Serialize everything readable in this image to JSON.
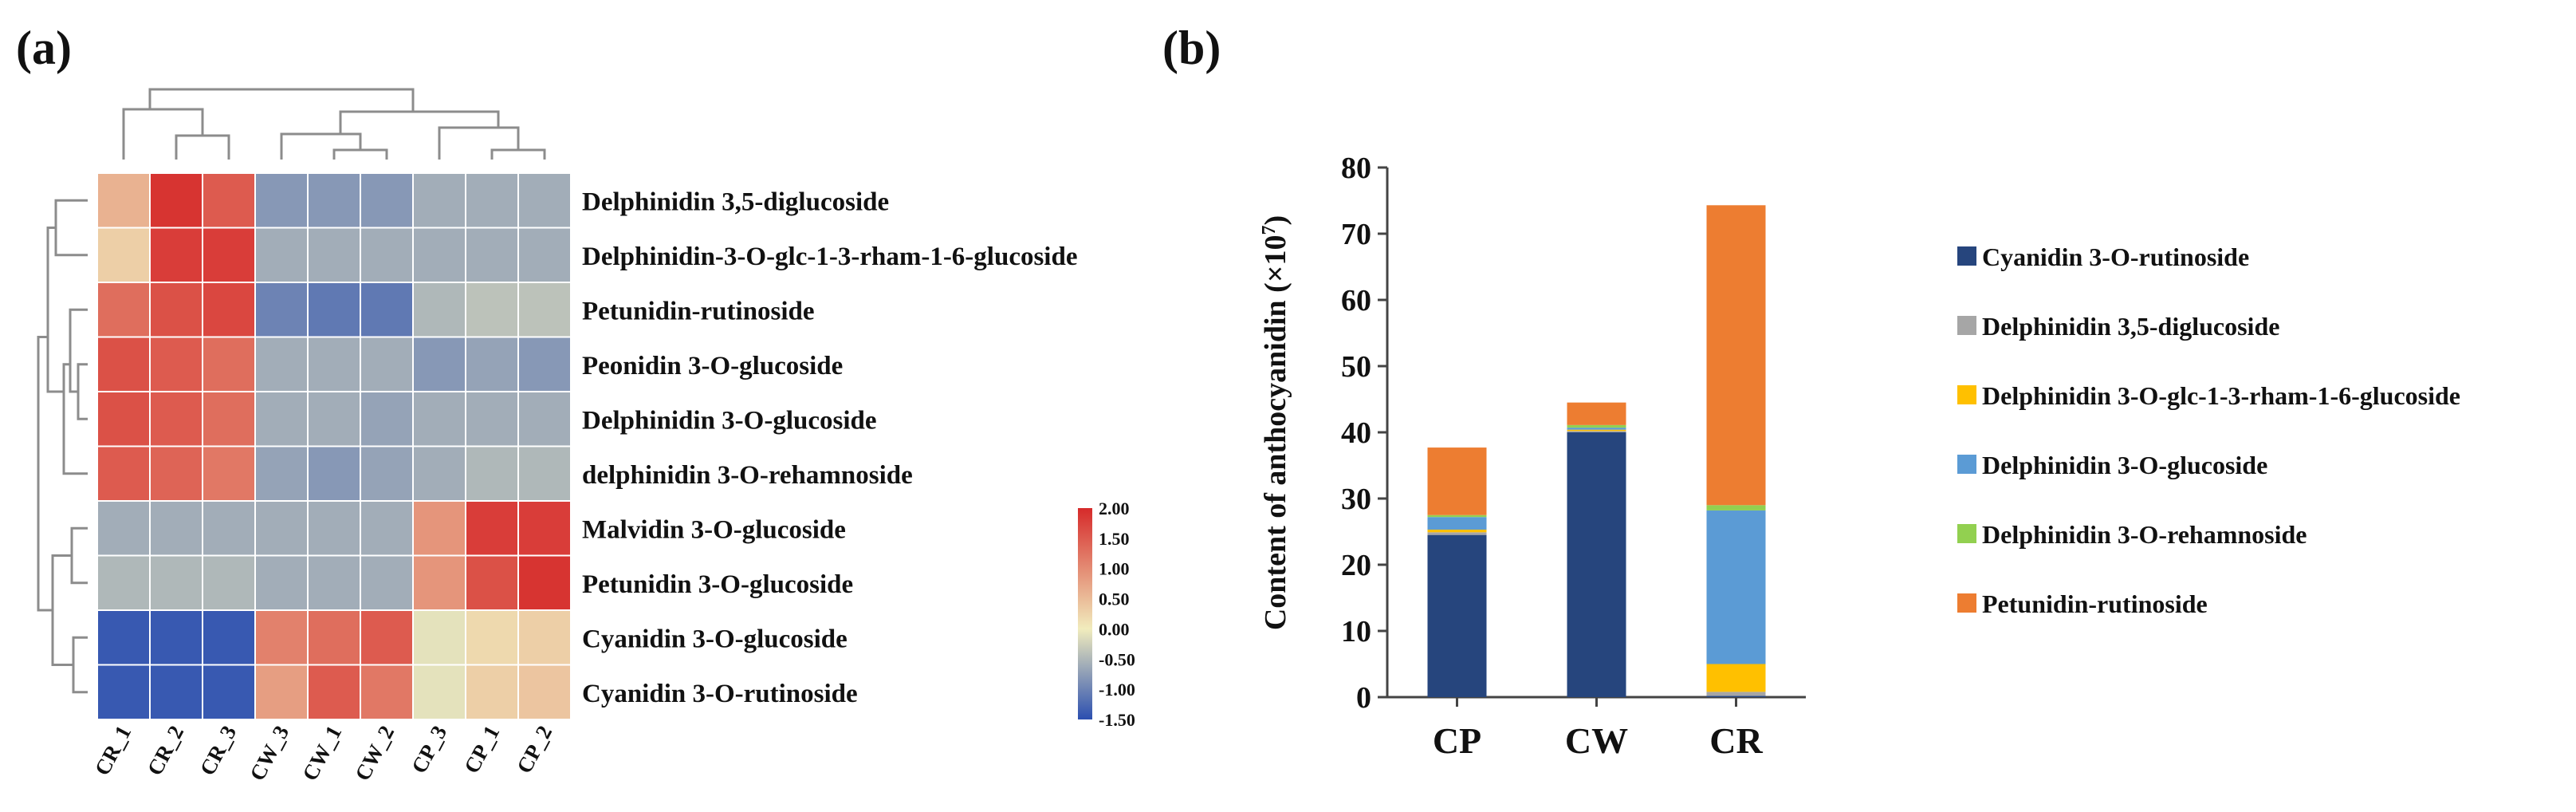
{
  "panel_labels": {
    "a": "(a)",
    "b": "(b)"
  },
  "chart_data": [
    {
      "type": "heatmap",
      "title": "",
      "columns": [
        "CR_1",
        "CR_2",
        "CR_3",
        "CW_3",
        "CW_1",
        "CW_2",
        "CP_3",
        "CP_1",
        "CP_2"
      ],
      "rows": [
        "Delphinidin 3,5-diglucoside",
        "Delphinidin-3-O-glc-1-3-rham-1-6-glucoside",
        "Petunidin-rutinoside",
        "Peonidin 3-O-glucoside",
        "Delphinidin 3-O-glucoside",
        "delphinidin 3-O-rehamnoside",
        "Malvidin 3-O-glucoside",
        "Petunidin 3-O-glucoside",
        "Cyanidin 3-O-glucoside",
        "Cyanidin 3-O-rutinoside"
      ],
      "values": [
        [
          0.6,
          1.9,
          1.5,
          -0.8,
          -0.8,
          -0.8,
          -0.6,
          -0.6,
          -0.6
        ],
        [
          0.3,
          1.8,
          1.8,
          -0.6,
          -0.6,
          -0.6,
          -0.6,
          -0.6,
          -0.6
        ],
        [
          1.3,
          1.6,
          1.7,
          -1.0,
          -1.1,
          -1.1,
          -0.5,
          -0.4,
          -0.4
        ],
        [
          1.6,
          1.5,
          1.3,
          -0.6,
          -0.6,
          -0.6,
          -0.8,
          -0.7,
          -0.8
        ],
        [
          1.6,
          1.5,
          1.3,
          -0.6,
          -0.6,
          -0.7,
          -0.6,
          -0.6,
          -0.6
        ],
        [
          1.5,
          1.4,
          1.2,
          -0.7,
          -0.8,
          -0.7,
          -0.6,
          -0.5,
          -0.5
        ],
        [
          -0.6,
          -0.6,
          -0.6,
          -0.6,
          -0.6,
          -0.6,
          0.9,
          1.8,
          1.8
        ],
        [
          -0.5,
          -0.5,
          -0.5,
          -0.6,
          -0.6,
          -0.6,
          0.9,
          1.6,
          1.9
        ],
        [
          -1.4,
          -1.4,
          -1.4,
          1.1,
          1.3,
          1.5,
          -0.1,
          0.2,
          0.3
        ],
        [
          -1.4,
          -1.4,
          -1.4,
          0.8,
          1.5,
          1.2,
          -0.1,
          0.3,
          0.4
        ]
      ],
      "colorbar": {
        "min": -1.5,
        "max": 2.0,
        "ticks": [
          "2.00",
          "1.50",
          "1.00",
          "0.50",
          "0.00",
          "-0.50",
          "-1.00",
          "-1.50"
        ],
        "colors": {
          "low": "#2b4fb0",
          "mid": "#f1ecbd",
          "high": "#d62a2a"
        }
      },
      "dendrogram": {
        "rows": true,
        "columns": true
      }
    },
    {
      "type": "bar",
      "stacked": true,
      "title": "",
      "categories": [
        "CP",
        "CW",
        "CR"
      ],
      "ylabel": "Content of anthocyanidin (×10⁷)",
      "ylabel_base": "Content of anthocyanidin (×10",
      "ylabel_exp": "7",
      "ylabel_close": ")",
      "ylim": [
        0,
        80
      ],
      "yticks": [
        0,
        10,
        20,
        30,
        40,
        50,
        60,
        70,
        80
      ],
      "series": [
        {
          "name": "Cyanidin 3-O-rutinoside",
          "color": "#26457d",
          "values": [
            24.5,
            40.0,
            0.2
          ]
        },
        {
          "name": "Delphinidin 3,5-diglucoside",
          "color": "#a6a6a6",
          "values": [
            0.4,
            0.2,
            0.6
          ]
        },
        {
          "name": "Delphinidin 3-O-glc-1-3-rham-1-6-glucoside",
          "color": "#ffc000",
          "values": [
            0.4,
            0.2,
            4.2
          ]
        },
        {
          "name": "Delphinidin 3-O-glucoside",
          "color": "#5b9bd5",
          "values": [
            1.9,
            0.3,
            23.2
          ]
        },
        {
          "name": "Delphinidin 3-O-rehamnoside",
          "color": "#92d050",
          "values": [
            0.3,
            0.4,
            0.8
          ]
        },
        {
          "name": "Petunidin-rutinoside",
          "color": "#ed7d31",
          "values": [
            10.2,
            3.4,
            45.3
          ]
        }
      ],
      "legend_position": "right"
    }
  ]
}
